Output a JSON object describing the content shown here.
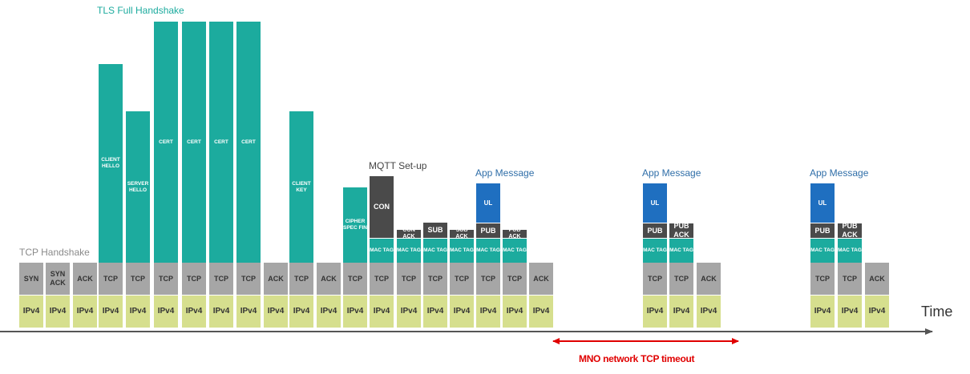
{
  "colors": {
    "ipv4": "#d6df8e",
    "tcp": "#a6a6a6",
    "tls": "#1cab9e",
    "mqtt": "#4a4a4a",
    "ul": "#1f6fc0",
    "timeout": "#e00000"
  },
  "section_labels": {
    "tcp_handshake": "TCP Handshake",
    "tls_handshake": "TLS Full Handshake",
    "mqtt_setup": "MQTT Set-up",
    "app_message": "App Message"
  },
  "axis": {
    "time_label": "Time",
    "timeout_label": "MNO network TCP timeout"
  },
  "packets": {
    "ipv4": "IPv4",
    "syn": "SYN",
    "syn_ack": "SYN ACK",
    "ack": "ACK",
    "tcp": "TCP",
    "client_hello": "CLIENT HELLO",
    "server_hello": "SERVER HELLO",
    "cert": "CERT",
    "client_key": "CLIENT KEY",
    "cipher_spec_fin": "CIPHER SPEC FIN",
    "con": "CON",
    "con_ack": "CON ACK",
    "sub": "SUB",
    "sub_ack": "SUB ACK",
    "pub": "PUB",
    "pub_ack": "PUB ACK",
    "ul": "UL",
    "mac_tag": "MAC TAG"
  }
}
